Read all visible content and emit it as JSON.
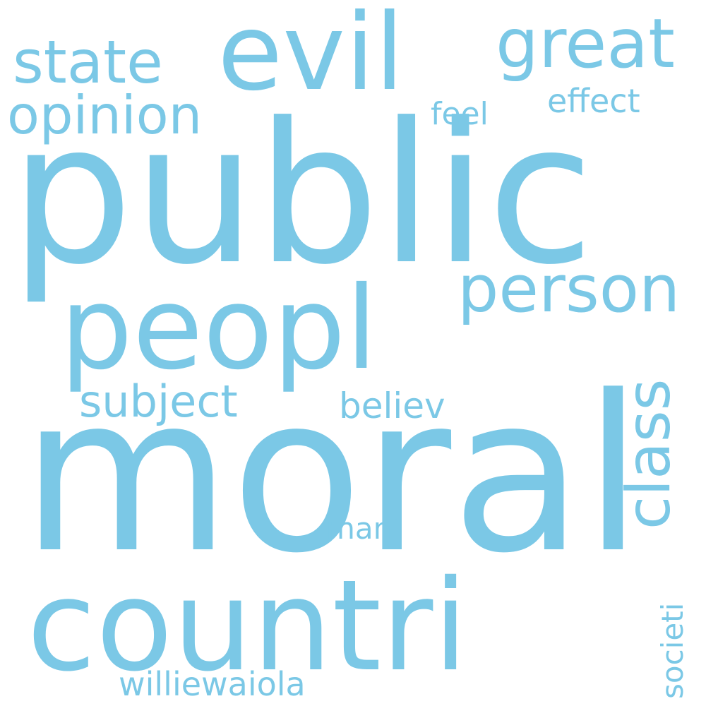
{
  "cloud": {
    "color": "#7bc8e6",
    "background": "#ffffff",
    "words": {
      "public": "public",
      "moral": "moral",
      "countri": "countri",
      "peopl": "peopl",
      "evil": "evil",
      "person": "person",
      "great": "great",
      "state": "state",
      "opinion": "opinion",
      "class": "class",
      "subject": "subject",
      "believ": "believ",
      "feel": "feel",
      "effect": "effect",
      "mani": "mani",
      "societi": "societi",
      "williewaiola": "williewaiola"
    }
  }
}
